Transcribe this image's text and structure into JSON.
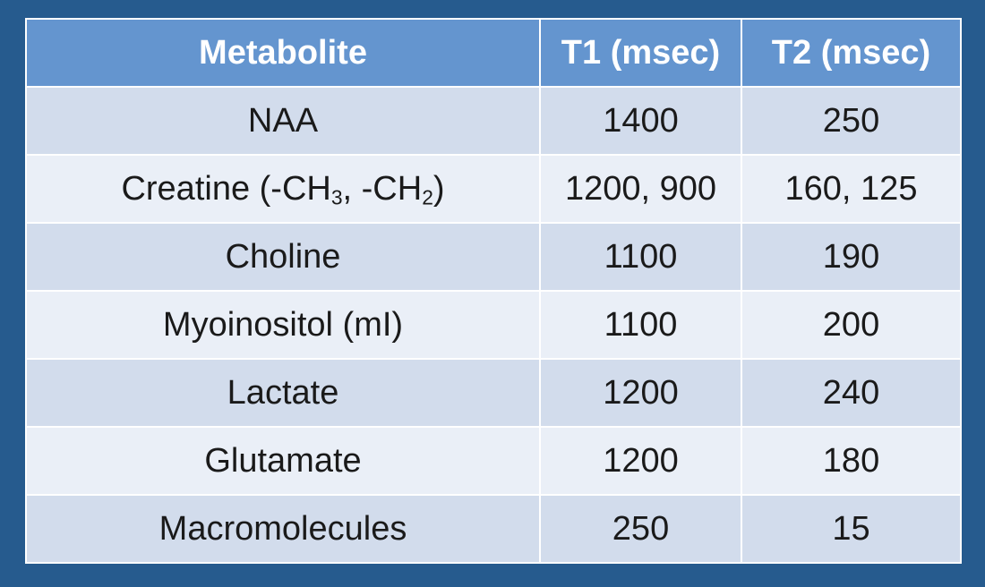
{
  "table": {
    "headers": [
      "Metabolite",
      "T1 (msec)",
      "T2 (msec)"
    ],
    "rows": [
      {
        "metabolite": "NAA",
        "t1": "1400",
        "t2": "250"
      },
      {
        "metabolite_parts": {
          "a": "Creatine (-CH",
          "sub1": "3",
          "b": ", -CH",
          "sub2": "2",
          "c": ")"
        },
        "t1": "1200, 900",
        "t2": "160, 125"
      },
      {
        "metabolite": "Choline",
        "t1": "1100",
        "t2": "190"
      },
      {
        "metabolite": "Myoinositol (mI)",
        "t1": "1100",
        "t2": "200"
      },
      {
        "metabolite": "Lactate",
        "t1": "1200",
        "t2": "240"
      },
      {
        "metabolite": "Glutamate",
        "t1": "1200",
        "t2": "180"
      },
      {
        "metabolite": "Macromolecules",
        "t1": "250",
        "t2": "15"
      }
    ]
  },
  "colors": {
    "background": "#265b8e",
    "header": "#6495cf",
    "row_odd": "#d2dcec",
    "row_even": "#eaeff7"
  }
}
